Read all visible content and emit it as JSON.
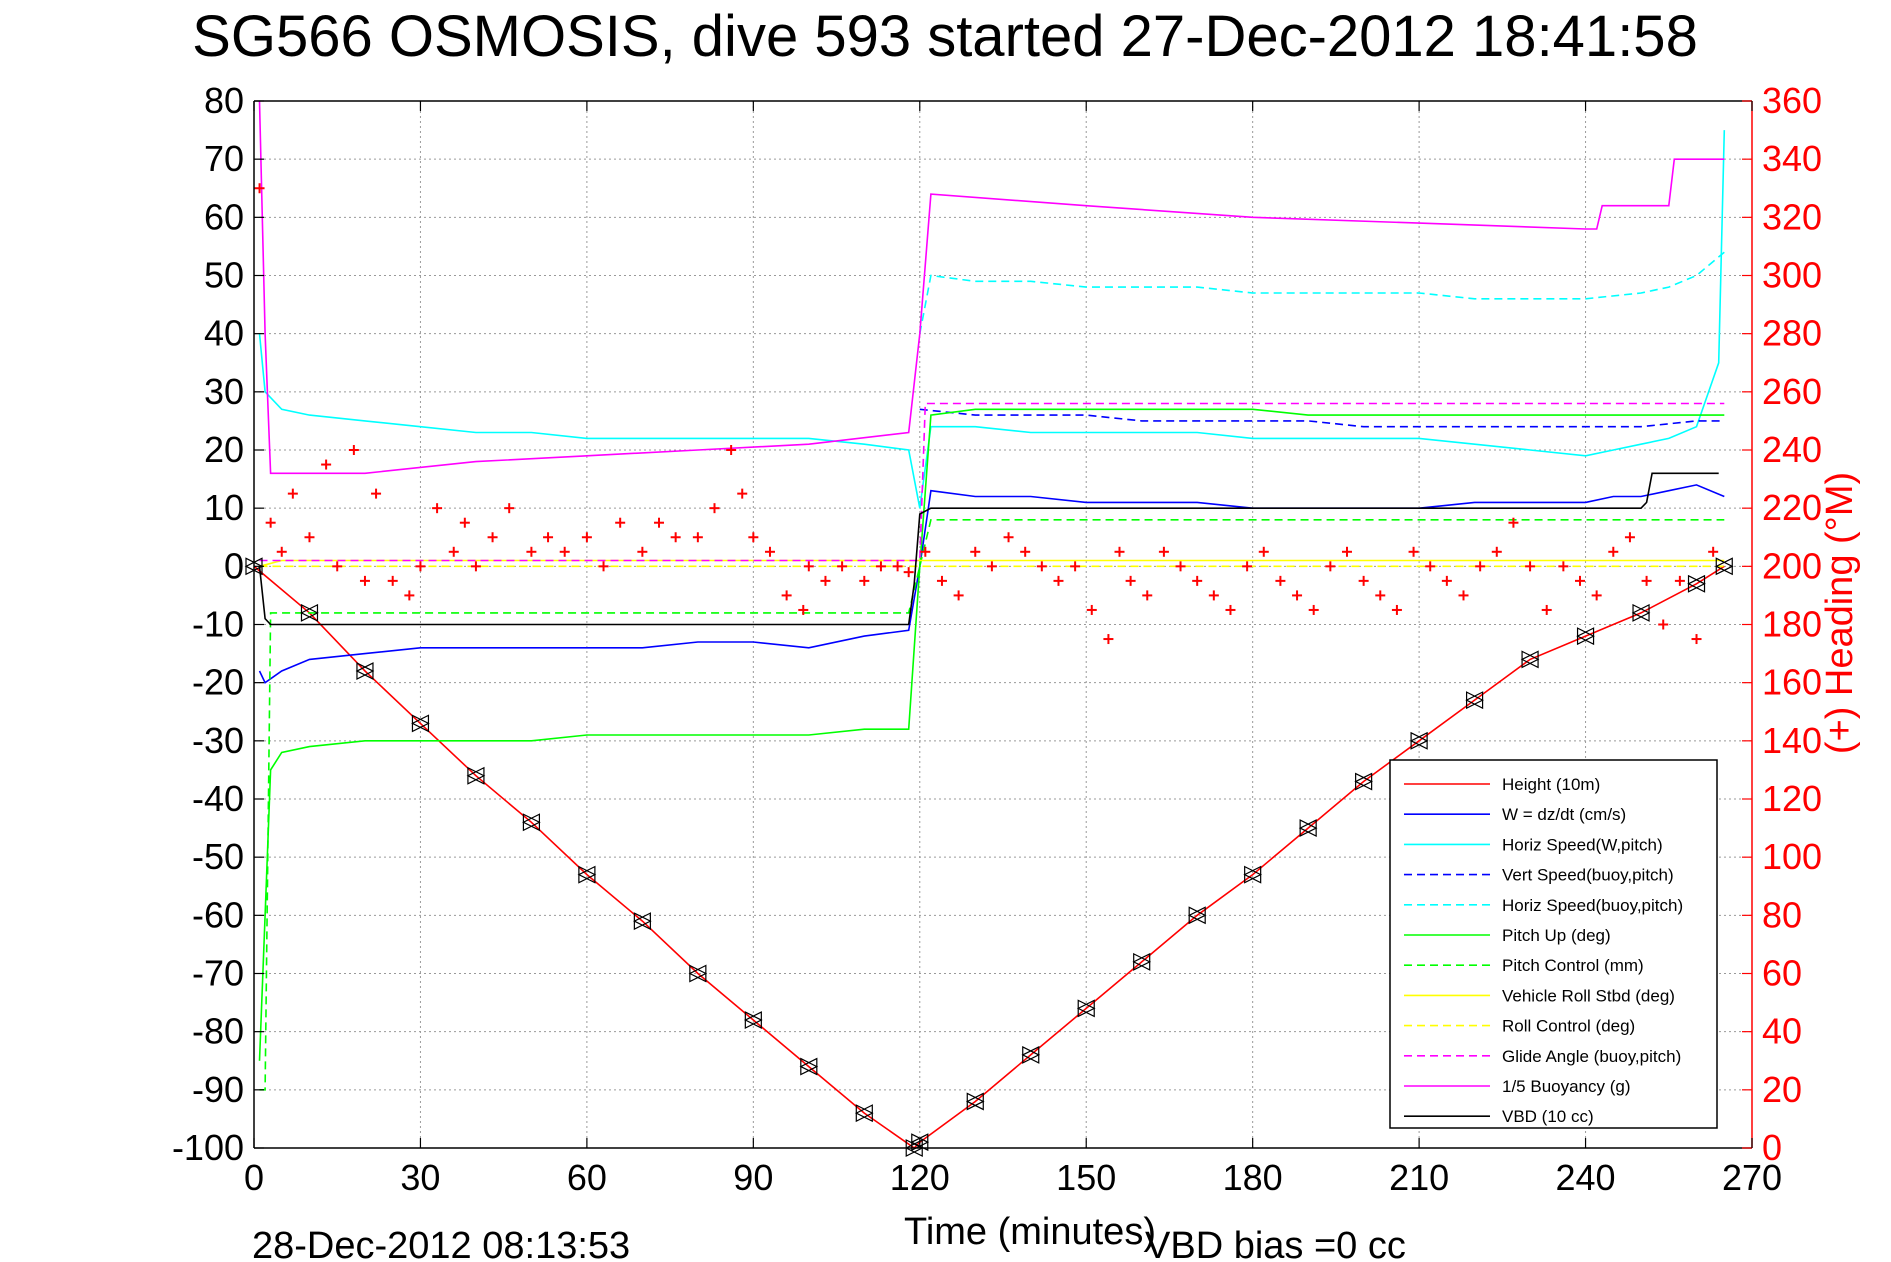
{
  "chart_data": {
    "type": "line",
    "title": "SG566 OSMOSIS, dive 593 started 27-Dec-2012 18:41:58",
    "xlabel": "Time (minutes)",
    "ylabel_right": "(+) Heading (°M)",
    "xlim": [
      0,
      270
    ],
    "ylim": [
      -100,
      80
    ],
    "ylim_right": [
      0,
      360
    ],
    "x_ticks": [
      0,
      30,
      60,
      90,
      120,
      150,
      180,
      210,
      240,
      270
    ],
    "y_ticks": [
      -100,
      -90,
      -80,
      -70,
      -60,
      -50,
      -40,
      -30,
      -20,
      -10,
      0,
      10,
      20,
      30,
      40,
      50,
      60,
      70,
      80
    ],
    "y_ticks_right": [
      0,
      20,
      40,
      60,
      80,
      100,
      120,
      140,
      160,
      180,
      200,
      220,
      240,
      260,
      280,
      300,
      320,
      340,
      360
    ],
    "grid": true,
    "legend_position": "lower-right",
    "footer_left": "28-Dec-2012 08:13:53",
    "footer_right": "VBD bias =0 cc",
    "colors": {
      "red": "#ff0000",
      "blue": "#0000ff",
      "cyan": "#00ffff",
      "green": "#00ff00",
      "yellow": "#ffff00",
      "magenta": "#ff00ff",
      "black": "#000000"
    },
    "series": [
      {
        "name": "Height (10m)",
        "color": "#ff0000",
        "dash": false,
        "x": [
          0,
          10,
          20,
          30,
          40,
          50,
          60,
          70,
          80,
          90,
          100,
          110,
          119,
          120,
          130,
          140,
          150,
          160,
          170,
          180,
          190,
          200,
          210,
          220,
          230,
          240,
          250,
          260,
          265
        ],
        "y": [
          0,
          -8,
          -18,
          -27,
          -36,
          -44,
          -53,
          -61,
          -70,
          -78,
          -86,
          -94,
          -100,
          -99,
          -92,
          -84,
          -76,
          -68,
          -60,
          -53,
          -45,
          -37,
          -30,
          -23,
          -16,
          -12,
          -8,
          -3,
          0
        ]
      },
      {
        "name": "W = dz/dt (cm/s)",
        "color": "#0000ff",
        "dash": false,
        "x": [
          1,
          2,
          5,
          10,
          20,
          30,
          40,
          50,
          60,
          70,
          80,
          90,
          100,
          110,
          118,
          120,
          122,
          130,
          140,
          150,
          160,
          170,
          180,
          190,
          200,
          210,
          220,
          230,
          240,
          245,
          250,
          255,
          260,
          265
        ],
        "y": [
          -18,
          -20,
          -18,
          -16,
          -15,
          -14,
          -14,
          -14,
          -14,
          -14,
          -13,
          -13,
          -14,
          -12,
          -11,
          0,
          13,
          12,
          12,
          11,
          11,
          11,
          10,
          10,
          10,
          10,
          11,
          11,
          11,
          12,
          12,
          13,
          14,
          12
        ]
      },
      {
        "name": "Horiz Speed(W,pitch)",
        "color": "#00ffff",
        "dash": false,
        "x": [
          1,
          2,
          5,
          10,
          20,
          30,
          40,
          50,
          60,
          70,
          80,
          90,
          100,
          110,
          118,
          120,
          122,
          130,
          140,
          150,
          160,
          170,
          180,
          190,
          200,
          210,
          220,
          230,
          240,
          245,
          250,
          255,
          260,
          264,
          265
        ],
        "y": [
          40,
          30,
          27,
          26,
          25,
          24,
          23,
          23,
          22,
          22,
          22,
          22,
          22,
          21,
          20,
          10,
          24,
          24,
          23,
          23,
          23,
          23,
          22,
          22,
          22,
          22,
          21,
          20,
          19,
          20,
          21,
          22,
          24,
          35,
          75
        ]
      },
      {
        "name": "Vert Speed(buoy,pitch)",
        "color": "#0000ff",
        "dash": true,
        "x": [
          120,
          130,
          140,
          150,
          160,
          170,
          180,
          190,
          200,
          210,
          220,
          230,
          240,
          250,
          260,
          265
        ],
        "y": [
          27,
          26,
          26,
          26,
          25,
          25,
          25,
          25,
          24,
          24,
          24,
          24,
          24,
          24,
          25,
          25
        ]
      },
      {
        "name": "Horiz Speed(buoy,pitch)",
        "color": "#00ffff",
        "dash": true,
        "x": [
          120,
          122,
          130,
          140,
          150,
          160,
          170,
          180,
          190,
          200,
          210,
          220,
          230,
          240,
          250,
          255,
          260,
          265
        ],
        "y": [
          40,
          50,
          49,
          49,
          48,
          48,
          48,
          47,
          47,
          47,
          47,
          46,
          46,
          46,
          47,
          48,
          50,
          54
        ]
      },
      {
        "name": "Pitch Up (deg)",
        "color": "#00ff00",
        "dash": false,
        "x": [
          1,
          2,
          3,
          5,
          10,
          20,
          30,
          40,
          50,
          60,
          70,
          80,
          90,
          100,
          110,
          118,
          120,
          122,
          130,
          140,
          150,
          160,
          170,
          180,
          190,
          200,
          210,
          220,
          230,
          240,
          250,
          260,
          265
        ],
        "y": [
          -85,
          -60,
          -35,
          -32,
          -31,
          -30,
          -30,
          -30,
          -30,
          -29,
          -29,
          -29,
          -29,
          -29,
          -28,
          -28,
          0,
          26,
          27,
          27,
          27,
          27,
          27,
          27,
          26,
          26,
          26,
          26,
          26,
          26,
          26,
          26,
          26
        ]
      },
      {
        "name": "Pitch Control (mm)",
        "color": "#00ff00",
        "dash": true,
        "x": [
          1,
          2,
          3,
          5,
          110,
          118,
          120,
          122,
          265
        ],
        "y": [
          -90,
          -90,
          -8,
          -8,
          -8,
          -8,
          0,
          8,
          8
        ]
      },
      {
        "name": "Vehicle Roll Stbd (deg)",
        "color": "#ffff00",
        "dash": false,
        "x": [
          1,
          5,
          20,
          40,
          60,
          80,
          100,
          120,
          140,
          160,
          180,
          200,
          220,
          240,
          260,
          265
        ],
        "y": [
          0,
          1,
          1,
          1,
          1,
          1,
          1,
          1,
          1,
          1,
          1,
          1,
          1,
          1,
          1,
          1
        ]
      },
      {
        "name": "Roll Control (deg)",
        "color": "#ffff00",
        "dash": true,
        "x": [
          1,
          265
        ],
        "y": [
          0,
          0
        ]
      },
      {
        "name": "Glide Angle (buoy,pitch)",
        "color": "#ff00ff",
        "dash": true,
        "x": [
          1,
          120,
          121,
          150,
          200,
          265
        ],
        "y": [
          1,
          1,
          28,
          28,
          28,
          28
        ]
      },
      {
        "name": "1/5 Buoyancy (g)",
        "color": "#ff00ff",
        "dash": false,
        "x": [
          1,
          2,
          3,
          10,
          20,
          40,
          60,
          80,
          100,
          118,
          120,
          122,
          150,
          180,
          210,
          240,
          242,
          243,
          250,
          255,
          256,
          265
        ],
        "y": [
          80,
          40,
          16,
          16,
          16,
          18,
          19,
          20,
          21,
          23,
          40,
          64,
          62,
          60,
          59,
          58,
          58,
          62,
          62,
          62,
          70,
          70
        ]
      },
      {
        "name": "VBD (10 cc)",
        "color": "#000000",
        "dash": false,
        "x": [
          1,
          2,
          3,
          118,
          119,
          120,
          122,
          250,
          251,
          252,
          264
        ],
        "y": [
          0,
          -9,
          -10,
          -10,
          -3,
          9,
          10,
          10,
          11,
          16,
          16
        ]
      },
      {
        "name": "(+) Heading",
        "color": "#ff0000",
        "axis": "right",
        "marker": "+",
        "x": [
          1,
          3,
          5,
          7,
          10,
          13,
          15,
          18,
          20,
          22,
          25,
          28,
          30,
          33,
          36,
          38,
          40,
          43,
          46,
          50,
          53,
          56,
          60,
          63,
          66,
          70,
          73,
          76,
          80,
          83,
          86,
          88,
          90,
          93,
          96,
          99,
          100,
          103,
          106,
          110,
          113,
          116,
          118,
          121,
          124,
          127,
          130,
          133,
          136,
          139,
          142,
          145,
          148,
          151,
          154,
          156,
          158,
          161,
          164,
          167,
          170,
          173,
          176,
          179,
          182,
          185,
          188,
          191,
          194,
          197,
          200,
          203,
          206,
          209,
          212,
          215,
          218,
          221,
          224,
          227,
          230,
          233,
          236,
          239,
          242,
          245,
          248,
          251,
          254,
          257,
          260,
          263
        ],
        "y": [
          330,
          215,
          205,
          225,
          210,
          235,
          200,
          240,
          195,
          225,
          195,
          190,
          200,
          220,
          205,
          215,
          200,
          210,
          220,
          205,
          210,
          205,
          210,
          200,
          215,
          205,
          215,
          210,
          210,
          220,
          240,
          225,
          210,
          205,
          190,
          185,
          200,
          195,
          200,
          195,
          200,
          200,
          198,
          205,
          195,
          190,
          205,
          200,
          210,
          205,
          200,
          195,
          200,
          185,
          175,
          205,
          195,
          190,
          205,
          200,
          195,
          190,
          185,
          200,
          205,
          195,
          190,
          185,
          200,
          205,
          195,
          190,
          185,
          205,
          200,
          195,
          190,
          200,
          205,
          215,
          200,
          185,
          200,
          195,
          190,
          205,
          210,
          195,
          180,
          195,
          175,
          205
        ]
      }
    ]
  }
}
